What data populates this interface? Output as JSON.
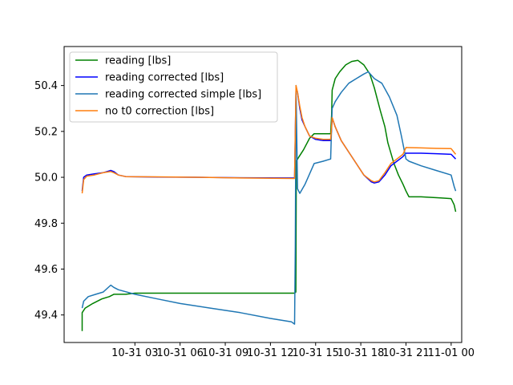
{
  "chart_data": {
    "type": "line",
    "title": "",
    "xlabel": "",
    "ylabel": "",
    "x_unit": "hours since 2023-10-30 00:00",
    "xlim": [
      22.3,
      48.7
    ],
    "ylim": [
      49.28,
      50.57
    ],
    "x_ticks": [
      {
        "x": 27,
        "label": "10-31 03"
      },
      {
        "x": 30,
        "label": "10-31 06"
      },
      {
        "x": 33,
        "label": "10-31 09"
      },
      {
        "x": 36,
        "label": "10-31 12"
      },
      {
        "x": 39,
        "label": "10-31 15"
      },
      {
        "x": 42,
        "label": "10-31 18"
      },
      {
        "x": 45,
        "label": "10-31 21"
      },
      {
        "x": 48,
        "label": "11-01 00"
      }
    ],
    "y_ticks": [
      {
        "y": 49.4,
        "label": "49.4"
      },
      {
        "y": 49.6,
        "label": "49.6"
      },
      {
        "y": 49.8,
        "label": "49.8"
      },
      {
        "y": 50.0,
        "label": "50.0"
      },
      {
        "y": 50.2,
        "label": "50.2"
      },
      {
        "y": 50.4,
        "label": "50.4"
      }
    ],
    "grid": false,
    "legend_position": "upper-left",
    "series": [
      {
        "name": "reading [lbs]",
        "color": "#008000",
        "points": [
          [
            23.5,
            49.33
          ],
          [
            23.5,
            49.41
          ],
          [
            23.7,
            49.43
          ],
          [
            24.2,
            49.45
          ],
          [
            24.8,
            49.47
          ],
          [
            25.3,
            49.48
          ],
          [
            25.6,
            49.49
          ],
          [
            26.4,
            49.49
          ],
          [
            27.0,
            49.495
          ],
          [
            28.5,
            49.495
          ],
          [
            30.0,
            49.495
          ],
          [
            32.0,
            49.495
          ],
          [
            34.0,
            49.495
          ],
          [
            36.0,
            49.495
          ],
          [
            37.6,
            49.495
          ],
          [
            37.69,
            49.5
          ],
          [
            37.72,
            50.07
          ],
          [
            37.9,
            50.09
          ],
          [
            38.2,
            50.12
          ],
          [
            38.6,
            50.17
          ],
          [
            38.9,
            50.19
          ],
          [
            39.4,
            50.19
          ],
          [
            40.0,
            50.19
          ],
          [
            40.06,
            50.27
          ],
          [
            40.1,
            50.38
          ],
          [
            40.3,
            50.43
          ],
          [
            40.6,
            50.46
          ],
          [
            41.0,
            50.49
          ],
          [
            41.4,
            50.505
          ],
          [
            41.8,
            50.51
          ],
          [
            42.2,
            50.49
          ],
          [
            42.6,
            50.45
          ],
          [
            42.9,
            50.39
          ],
          [
            43.3,
            50.29
          ],
          [
            43.6,
            50.22
          ],
          [
            43.8,
            50.15
          ],
          [
            44.2,
            50.06
          ],
          [
            44.5,
            50.01
          ],
          [
            44.8,
            49.97
          ],
          [
            45.0,
            49.94
          ],
          [
            45.2,
            49.915
          ],
          [
            46.0,
            49.915
          ],
          [
            47.3,
            49.91
          ],
          [
            48.0,
            49.907
          ],
          [
            48.2,
            49.88
          ],
          [
            48.3,
            49.85
          ]
        ]
      },
      {
        "name": "reading corrected [lbs]",
        "color": "#0000ff",
        "points": [
          [
            23.5,
            49.94
          ],
          [
            23.6,
            50.0
          ],
          [
            23.8,
            50.01
          ],
          [
            24.3,
            50.015
          ],
          [
            24.9,
            50.02
          ],
          [
            25.4,
            50.03
          ],
          [
            25.6,
            50.025
          ],
          [
            25.9,
            50.01
          ],
          [
            26.4,
            50.003
          ],
          [
            28.5,
            50.001
          ],
          [
            31.0,
            50.0
          ],
          [
            34.0,
            49.998
          ],
          [
            37.6,
            49.997
          ],
          [
            37.7,
            50.39
          ],
          [
            37.8,
            50.37
          ],
          [
            37.95,
            50.3
          ],
          [
            38.1,
            50.25
          ],
          [
            38.3,
            50.22
          ],
          [
            38.6,
            50.18
          ],
          [
            39.0,
            50.165
          ],
          [
            39.5,
            50.16
          ],
          [
            40.0,
            50.16
          ],
          [
            40.05,
            50.2
          ],
          [
            40.1,
            50.26
          ],
          [
            40.3,
            50.22
          ],
          [
            40.7,
            50.16
          ],
          [
            41.2,
            50.11
          ],
          [
            41.7,
            50.06
          ],
          [
            42.2,
            50.01
          ],
          [
            42.7,
            49.98
          ],
          [
            42.9,
            49.975
          ],
          [
            43.2,
            49.98
          ],
          [
            43.6,
            50.01
          ],
          [
            44.0,
            50.05
          ],
          [
            44.4,
            50.07
          ],
          [
            44.8,
            50.09
          ],
          [
            45.0,
            50.105
          ],
          [
            46.0,
            50.105
          ],
          [
            47.0,
            50.103
          ],
          [
            48.0,
            50.1
          ],
          [
            48.3,
            50.08
          ]
        ]
      },
      {
        "name": "reading corrected simple [lbs]",
        "color": "#1f77b4",
        "points": [
          [
            23.5,
            49.43
          ],
          [
            23.6,
            49.46
          ],
          [
            23.9,
            49.48
          ],
          [
            24.4,
            49.49
          ],
          [
            24.9,
            49.5
          ],
          [
            25.4,
            49.53
          ],
          [
            25.6,
            49.52
          ],
          [
            25.9,
            49.51
          ],
          [
            27.0,
            49.49
          ],
          [
            28.5,
            49.47
          ],
          [
            30.0,
            49.45
          ],
          [
            32.0,
            49.43
          ],
          [
            34.0,
            49.41
          ],
          [
            36.0,
            49.385
          ],
          [
            37.4,
            49.37
          ],
          [
            37.6,
            49.36
          ],
          [
            37.65,
            49.7
          ],
          [
            37.7,
            50.4
          ],
          [
            37.8,
            49.95
          ],
          [
            37.95,
            49.93
          ],
          [
            38.3,
            49.97
          ],
          [
            38.9,
            50.06
          ],
          [
            39.5,
            50.07
          ],
          [
            40.0,
            50.08
          ],
          [
            40.1,
            50.3
          ],
          [
            40.3,
            50.33
          ],
          [
            40.7,
            50.37
          ],
          [
            41.2,
            50.41
          ],
          [
            41.7,
            50.43
          ],
          [
            42.2,
            50.45
          ],
          [
            42.5,
            50.46
          ],
          [
            42.9,
            50.43
          ],
          [
            43.4,
            50.41
          ],
          [
            43.9,
            50.35
          ],
          [
            44.4,
            50.27
          ],
          [
            44.7,
            50.18
          ],
          [
            45.0,
            50.08
          ],
          [
            45.2,
            50.07
          ],
          [
            46.0,
            50.05
          ],
          [
            47.0,
            50.03
          ],
          [
            48.0,
            50.01
          ],
          [
            48.2,
            49.96
          ],
          [
            48.3,
            49.94
          ]
        ]
      },
      {
        "name": "no t0 correction [lbs]",
        "color": "#ff7f0e",
        "points": [
          [
            23.5,
            49.93
          ],
          [
            23.6,
            49.99
          ],
          [
            23.8,
            50.005
          ],
          [
            24.3,
            50.01
          ],
          [
            24.9,
            50.02
          ],
          [
            25.4,
            50.025
          ],
          [
            25.6,
            50.02
          ],
          [
            25.9,
            50.01
          ],
          [
            26.4,
            50.003
          ],
          [
            28.5,
            50.002
          ],
          [
            31.0,
            50.0
          ],
          [
            34.0,
            49.997
          ],
          [
            37.6,
            49.995
          ],
          [
            37.7,
            50.4
          ],
          [
            37.8,
            50.37
          ],
          [
            37.95,
            50.31
          ],
          [
            38.1,
            50.26
          ],
          [
            38.3,
            50.22
          ],
          [
            38.6,
            50.18
          ],
          [
            39.0,
            50.17
          ],
          [
            39.5,
            50.165
          ],
          [
            40.0,
            50.165
          ],
          [
            40.05,
            50.21
          ],
          [
            40.1,
            50.26
          ],
          [
            40.3,
            50.22
          ],
          [
            40.7,
            50.16
          ],
          [
            41.2,
            50.11
          ],
          [
            41.7,
            50.06
          ],
          [
            42.2,
            50.01
          ],
          [
            42.7,
            49.985
          ],
          [
            42.9,
            49.98
          ],
          [
            43.2,
            49.985
          ],
          [
            43.6,
            50.02
          ],
          [
            44.0,
            50.06
          ],
          [
            44.4,
            50.08
          ],
          [
            44.8,
            50.1
          ],
          [
            45.0,
            50.13
          ],
          [
            46.0,
            50.128
          ],
          [
            47.0,
            50.126
          ],
          [
            48.0,
            50.125
          ],
          [
            48.3,
            50.1
          ]
        ]
      }
    ]
  }
}
